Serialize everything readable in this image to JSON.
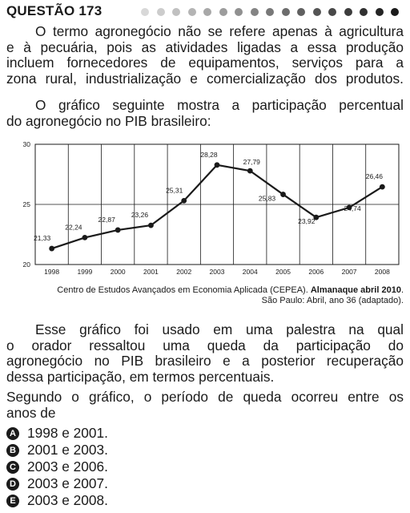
{
  "header": {
    "title": "QUESTÃO 173",
    "dot_colors": [
      "#d8d8d8",
      "#cccccc",
      "#c0c0c0",
      "#b4b4b4",
      "#a8a8a8",
      "#9c9c9c",
      "#909090",
      "#848484",
      "#787878",
      "#6c6c6c",
      "#606060",
      "#545454",
      "#484848",
      "#3c3c3c",
      "#303030",
      "#242424",
      "#1a1a1a"
    ]
  },
  "intro": {
    "lines": [
      "O termo agronegócio não se refere apenas à agricultura",
      "e à pecuária, pois as atividades ligadas a essa produção",
      "incluem fornecedores de equipamentos, serviços para a",
      "zona rural, industrialização e comercialização dos produtos."
    ]
  },
  "chart_intro": {
    "lines": [
      "O gráfico seguinte mostra a participação percentual",
      "do agronegócio no PIB brasileiro:"
    ]
  },
  "chart_data": {
    "type": "line",
    "title": "",
    "xlabel": "",
    "ylabel": "",
    "x": [
      "1998",
      "1999",
      "2000",
      "2001",
      "2002",
      "2003",
      "2004",
      "2005",
      "2006",
      "2007",
      "2008"
    ],
    "series": [
      {
        "values": [
          21.33,
          22.24,
          22.87,
          23.26,
          25.31,
          28.28,
          27.79,
          25.83,
          23.92,
          24.74,
          26.46
        ]
      }
    ],
    "value_labels": [
      "21,33",
      "22,24",
      "22,87",
      "23,26",
      "25,31",
      "28,28",
      "27,79",
      "25,83",
      "23,92",
      "24,74",
      "26,46"
    ],
    "y_ticks": [
      "20",
      "25",
      "30"
    ],
    "ylim": [
      20,
      30
    ],
    "grid": "vertical lines at each year, horizontal line at 25",
    "line_color": "#1a1a1a"
  },
  "source": {
    "line1_plain": "Centro de Estudos Avançados em Economia Aplicada (CEPEA). ",
    "line1_bold": "Almanaque abril 2010",
    "line1_end": ".",
    "line2": "São Paulo: Abril, ano 36 (adaptado)."
  },
  "question": {
    "lines": [
      "Esse gráfico foi usado em uma palestra na qual",
      "o orador ressaltou uma queda da participação do",
      "agronegócio no PIB brasileiro e a posterior recuperação",
      "dessa participação, em termos percentuais."
    ]
  },
  "prompt": {
    "lines": [
      "Segundo o gráfico, o período de queda ocorreu entre os",
      "anos de"
    ]
  },
  "options": [
    {
      "letter": "A",
      "text": "1998 e 2001."
    },
    {
      "letter": "B",
      "text": "2001 e 2003."
    },
    {
      "letter": "C",
      "text": "2003 e 2006."
    },
    {
      "letter": "D",
      "text": "2003 e 2007."
    },
    {
      "letter": "E",
      "text": "2003 e 2008."
    }
  ]
}
